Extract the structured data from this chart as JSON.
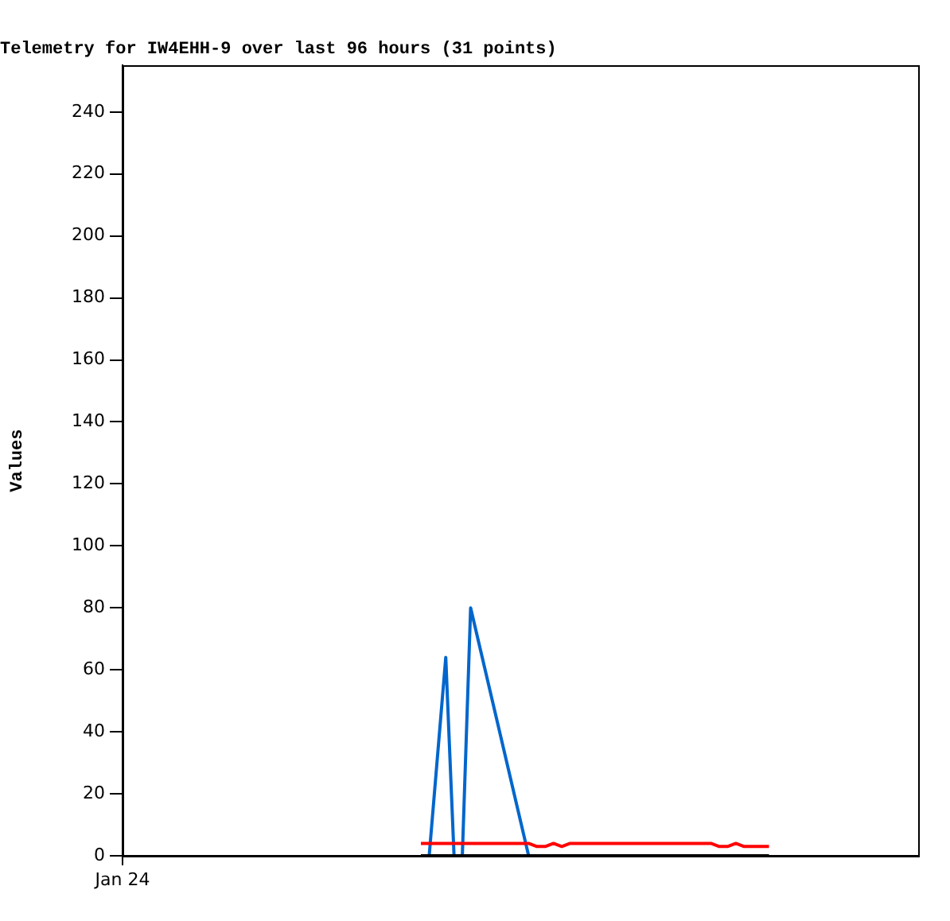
{
  "chart_data": {
    "type": "line",
    "title": "Telemetry for IW4EHH-9 over last 96 hours (31 points)",
    "ylabel": "Values",
    "categories": [
      "Jan 24",
      null,
      null,
      null,
      null,
      null,
      null,
      null,
      null,
      null,
      null,
      null,
      null,
      null,
      null,
      null,
      null,
      null,
      null,
      null,
      null,
      null,
      null,
      null,
      null,
      null,
      null,
      null,
      null,
      null,
      null,
      null,
      null,
      null,
      null,
      null,
      null,
      null,
      null,
      null,
      null,
      null,
      null,
      null,
      null,
      null,
      null,
      null,
      null,
      null,
      null,
      null,
      null,
      null,
      null,
      null,
      null,
      null,
      null,
      null,
      null,
      null,
      null,
      null,
      null,
      null,
      null,
      null,
      null,
      null,
      null,
      null,
      null,
      null,
      null,
      null,
      null,
      null,
      null,
      null,
      null,
      null,
      null,
      null,
      null,
      null,
      null,
      null,
      null,
      null,
      null,
      null,
      null,
      null,
      null,
      null,
      null
    ],
    "ylim": [
      0,
      255
    ],
    "yticks": [
      0,
      20,
      40,
      60,
      80,
      100,
      120,
      140,
      160,
      180,
      200,
      220,
      240
    ],
    "grid": false,
    "legend": false,
    "marker": "none",
    "line_style": "solid",
    "series": [
      {
        "color": "#000000",
        "values": [
          null,
          null,
          null,
          null,
          null,
          null,
          null,
          null,
          null,
          null,
          null,
          null,
          null,
          null,
          null,
          null,
          null,
          null,
          null,
          null,
          null,
          null,
          null,
          null,
          null,
          null,
          null,
          null,
          null,
          null,
          null,
          null,
          null,
          null,
          null,
          null,
          0,
          null,
          null,
          null,
          null,
          null,
          null,
          null,
          null,
          null,
          null,
          null,
          null,
          null,
          null,
          null,
          null,
          null,
          null,
          null,
          null,
          null,
          null,
          null,
          null,
          null,
          null,
          null,
          null,
          null,
          null,
          null,
          null,
          null,
          null,
          null,
          null,
          null,
          null,
          null,
          null,
          null,
          0,
          null,
          null,
          null,
          null,
          null,
          null,
          null,
          null,
          null,
          null,
          null,
          null,
          null,
          null,
          null,
          null,
          null,
          null
        ]
      },
      {
        "color": "#ff0000",
        "values": [
          null,
          null,
          null,
          null,
          null,
          null,
          null,
          null,
          null,
          null,
          null,
          null,
          null,
          null,
          null,
          null,
          null,
          null,
          null,
          null,
          null,
          null,
          null,
          null,
          null,
          null,
          null,
          null,
          null,
          null,
          null,
          null,
          null,
          null,
          null,
          null,
          4,
          null,
          null,
          null,
          null,
          null,
          null,
          null,
          null,
          null,
          null,
          null,
          null,
          4,
          3,
          3,
          4,
          3,
          4,
          null,
          null,
          null,
          null,
          null,
          null,
          null,
          null,
          null,
          null,
          null,
          null,
          null,
          null,
          null,
          null,
          4,
          3,
          3,
          4,
          3,
          null,
          null,
          3,
          null,
          null,
          null,
          null,
          null,
          null,
          null,
          null,
          null,
          null,
          null,
          null,
          null,
          null,
          null,
          null,
          null,
          null
        ]
      },
      {
        "color": "#0066cc",
        "values": [
          null,
          null,
          null,
          null,
          null,
          null,
          null,
          null,
          null,
          null,
          null,
          null,
          null,
          null,
          null,
          null,
          null,
          null,
          null,
          null,
          null,
          null,
          null,
          null,
          null,
          null,
          null,
          null,
          null,
          null,
          null,
          null,
          null,
          null,
          null,
          null,
          null,
          0,
          null,
          64,
          0,
          0,
          80,
          null,
          null,
          null,
          null,
          null,
          null,
          0,
          null,
          null,
          null,
          null,
          null,
          null,
          null,
          null,
          null,
          null,
          null,
          null,
          null,
          null,
          null,
          null,
          null,
          null,
          null,
          null,
          null,
          null,
          null,
          null,
          null,
          null,
          null,
          null,
          null,
          null,
          null,
          null,
          null,
          null,
          null,
          null,
          null,
          null,
          null,
          null,
          null,
          null,
          null,
          null,
          null,
          null,
          null
        ]
      }
    ]
  }
}
